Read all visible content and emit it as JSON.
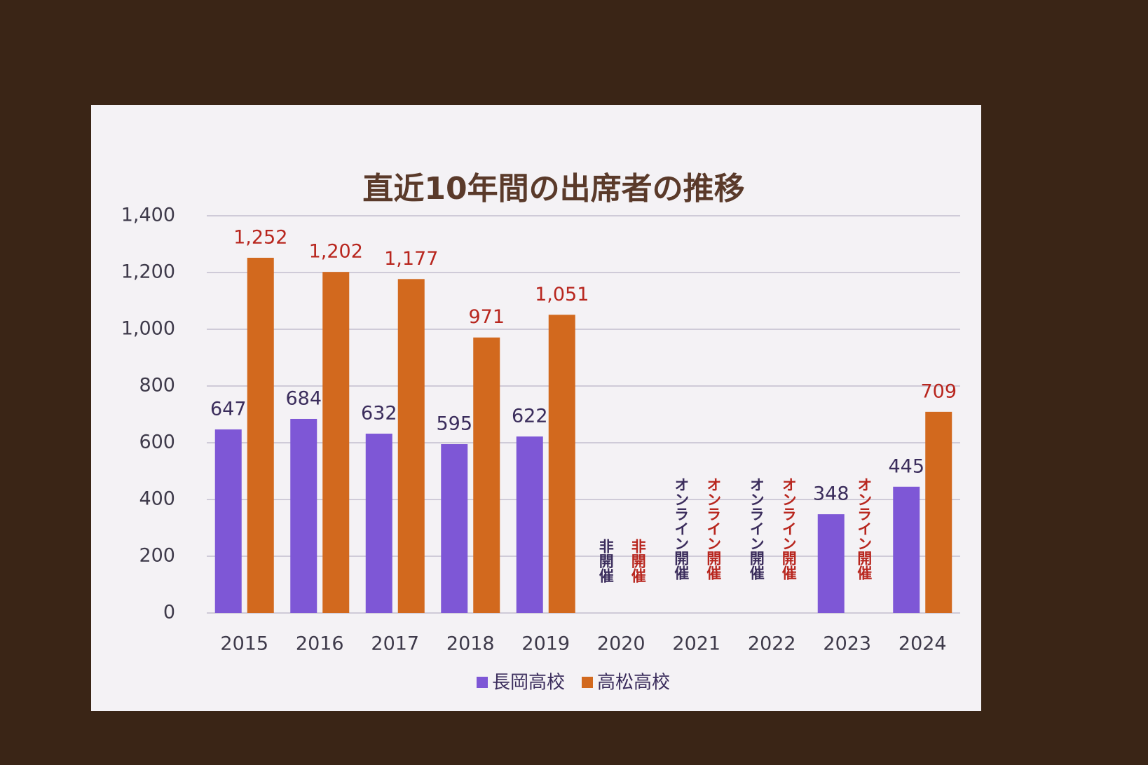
{
  "chart_data": {
    "type": "bar",
    "title": "直近10年間の出席者の推移",
    "categories": [
      "2015",
      "2016",
      "2017",
      "2018",
      "2019",
      "2020",
      "2021",
      "2022",
      "2023",
      "2024"
    ],
    "series": [
      {
        "name": "長岡高校",
        "color": "#7e57d6",
        "label_color": "#3b2d5c",
        "values": [
          647,
          684,
          632,
          595,
          622,
          null,
          null,
          null,
          348,
          445
        ],
        "notes": [
          null,
          null,
          null,
          null,
          null,
          "非開催",
          "オンライン開催",
          "オンライン開催",
          null,
          null
        ]
      },
      {
        "name": "高松高校",
        "color": "#d2691e",
        "label_color": "#b8261e",
        "values": [
          1252,
          1202,
          1177,
          971,
          1051,
          null,
          null,
          null,
          null,
          709
        ],
        "value_labels": [
          "1,252",
          "1,202",
          "1,177",
          "971",
          "1,051",
          null,
          null,
          null,
          null,
          "709"
        ],
        "notes": [
          null,
          null,
          null,
          null,
          null,
          "非開催",
          "オンライン開催",
          "オンライン開催",
          "オンライン開催",
          null
        ]
      }
    ],
    "ylim": [
      0,
      1400
    ],
    "yticks": [
      0,
      200,
      400,
      600,
      800,
      {
        "value": 1000,
        "label": "1,000"
      },
      {
        "value": 1200,
        "label": "1,200"
      },
      {
        "value": 1400,
        "label": "1,400"
      }
    ],
    "grid": true
  }
}
